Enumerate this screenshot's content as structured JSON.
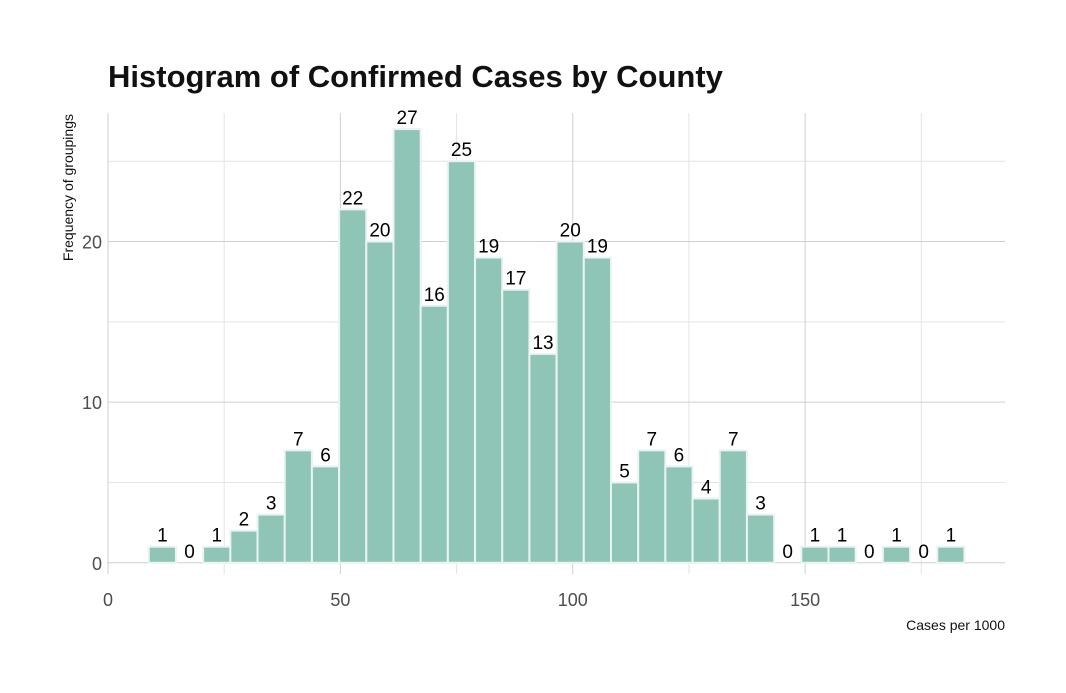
{
  "chart_data": {
    "type": "histogram",
    "title": "Histogram of Confirmed Cases by County",
    "xlabel": "Cases per 1000",
    "ylabel": "Frequency of groupings",
    "xlim": [
      0,
      193
    ],
    "ylim": [
      -0.7,
      28
    ],
    "x_ticks": [
      0,
      50,
      100,
      150
    ],
    "y_ticks": [
      0,
      10,
      20
    ],
    "bin_width": 5.85,
    "bin_centers": [
      11.7,
      17.55,
      23.4,
      29.25,
      35.1,
      40.95,
      46.8,
      52.65,
      58.5,
      64.35,
      70.2,
      76.05,
      81.9,
      87.75,
      93.6,
      99.45,
      105.3,
      111.15,
      117.0,
      122.85,
      128.7,
      134.55,
      140.4,
      146.25,
      152.1,
      157.95,
      163.8,
      169.65,
      175.5,
      181.35
    ],
    "values": [
      1,
      0,
      1,
      2,
      3,
      7,
      6,
      22,
      20,
      27,
      16,
      25,
      19,
      17,
      13,
      20,
      19,
      5,
      7,
      6,
      4,
      7,
      3,
      0,
      1,
      1,
      0,
      1,
      0,
      1
    ],
    "grid": true,
    "colors": {
      "bar_fill": "#8fc5b7",
      "bar_stroke": "#eaf3f1"
    }
  }
}
